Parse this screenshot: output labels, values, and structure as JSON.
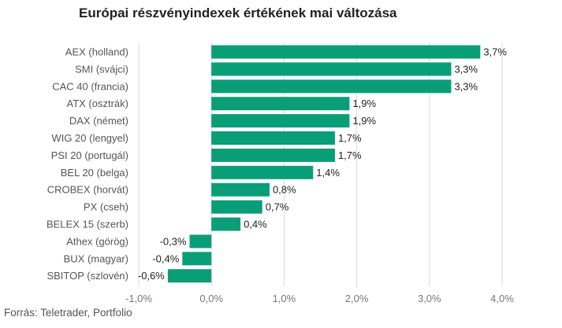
{
  "chart_data": {
    "type": "bar",
    "orientation": "horizontal",
    "title": "Európai részvényindexek értékének mai változása",
    "source": "Forrás: Teletrader, Portfolio",
    "categories": [
      "AEX (holland)",
      "SMI (svájci)",
      "CAC 40 (francia)",
      "ATX (osztrák)",
      "DAX (német)",
      "WIG 20 (lengyel)",
      "PSI 20 (portugál)",
      "BEL 20 (belga)",
      "CROBEX (horvát)",
      "PX (cseh)",
      "BELEX 15 (szerb)",
      "Athex (görög)",
      "BUX (magyar)",
      "SBITOP (szlovén)"
    ],
    "values": [
      3.7,
      3.3,
      3.3,
      1.9,
      1.9,
      1.7,
      1.7,
      1.4,
      0.8,
      0.7,
      0.4,
      -0.3,
      -0.4,
      -0.6
    ],
    "value_labels": [
      "3,7%",
      "3,3%",
      "3,3%",
      "1,9%",
      "1,9%",
      "1,7%",
      "1,7%",
      "1,4%",
      "0,8%",
      "0,7%",
      "0,4%",
      "-0,3%",
      "-0,4%",
      "-0,6%"
    ],
    "x_ticks": [
      -1,
      0,
      1,
      2,
      3,
      4
    ],
    "x_tick_labels": [
      "-1,0%",
      "0,0%",
      "1,0%",
      "2,0%",
      "3,0%",
      "4,0%"
    ],
    "xlim": [
      -1,
      4
    ],
    "grid": true,
    "bar_color": "#0a9e78",
    "label_color": "#555555",
    "grid_color": "#d9d9d9"
  }
}
